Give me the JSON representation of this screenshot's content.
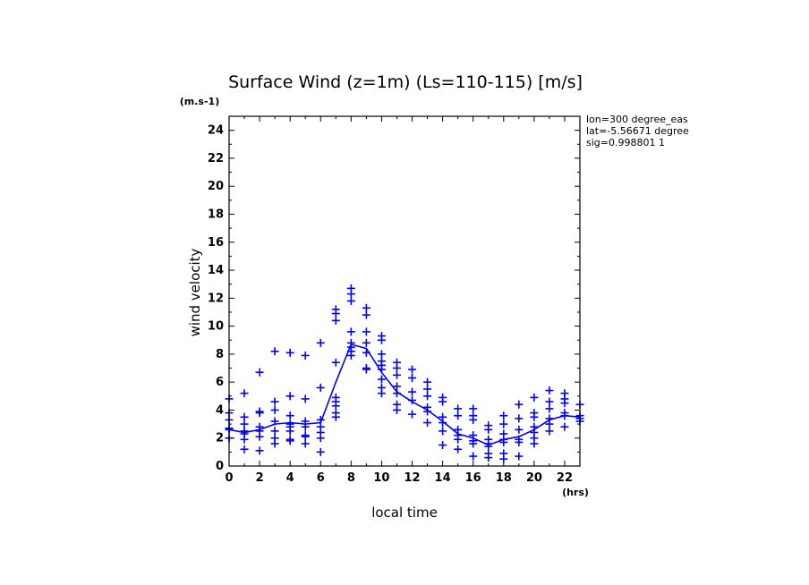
{
  "chart_data": {
    "type": "scatter",
    "title": "Surface Wind (z=1m) (Ls=110-115) [m/s]",
    "y_unit_label": "(m.s-1)",
    "xlabel": "local time",
    "x_unit_label": "(hrs)",
    "ylabel": "wind velocity",
    "xlim": [
      0,
      23
    ],
    "ylim": [
      0,
      25
    ],
    "x_ticks": [
      0,
      2,
      4,
      6,
      8,
      10,
      12,
      14,
      16,
      18,
      20,
      22
    ],
    "y_ticks": [
      0,
      2,
      4,
      6,
      8,
      10,
      12,
      14,
      16,
      18,
      20,
      22,
      24
    ],
    "info_lines": [
      "lon=300 degree_eas",
      "lat=-5.56671 degree",
      "sig=0.998801 1"
    ],
    "color": "#0000ff",
    "grid": false,
    "series": [
      {
        "type": "scatter",
        "marker": "+",
        "points": [
          [
            0,
            4.8
          ],
          [
            0,
            3.8
          ],
          [
            0,
            3.3
          ],
          [
            0,
            2.7
          ],
          [
            0,
            2.6
          ],
          [
            0,
            2.0
          ],
          [
            1,
            5.2
          ],
          [
            1,
            3.5
          ],
          [
            1,
            3.0
          ],
          [
            1,
            2.5
          ],
          [
            1,
            2.3
          ],
          [
            1,
            1.9
          ],
          [
            1,
            1.2
          ],
          [
            2,
            6.7
          ],
          [
            2,
            3.9
          ],
          [
            2,
            3.8
          ],
          [
            2,
            2.8
          ],
          [
            2,
            2.5
          ],
          [
            2,
            2.1
          ],
          [
            2,
            1.1
          ],
          [
            3,
            8.2
          ],
          [
            3,
            4.6
          ],
          [
            3,
            4.0
          ],
          [
            3,
            3.2
          ],
          [
            3,
            2.5
          ],
          [
            3,
            2.0
          ],
          [
            3,
            1.6
          ],
          [
            4,
            8.1
          ],
          [
            4,
            5.0
          ],
          [
            4,
            3.6
          ],
          [
            4,
            3.0
          ],
          [
            4,
            2.8
          ],
          [
            4,
            2.5
          ],
          [
            4,
            1.9
          ],
          [
            4,
            1.8
          ],
          [
            5,
            7.9
          ],
          [
            5,
            4.8
          ],
          [
            5,
            3.2
          ],
          [
            5,
            2.8
          ],
          [
            5,
            2.2
          ],
          [
            5,
            2.1
          ],
          [
            5,
            1.6
          ],
          [
            6,
            8.8
          ],
          [
            6,
            5.6
          ],
          [
            6,
            3.3
          ],
          [
            6,
            2.8
          ],
          [
            6,
            2.4
          ],
          [
            6,
            2.0
          ],
          [
            6,
            1.0
          ],
          [
            7,
            11.2
          ],
          [
            7,
            10.9
          ],
          [
            7,
            10.4
          ],
          [
            7,
            7.4
          ],
          [
            7,
            4.9
          ],
          [
            7,
            4.6
          ],
          [
            7,
            4.3
          ],
          [
            7,
            3.8
          ],
          [
            7,
            3.5
          ],
          [
            8,
            12.7
          ],
          [
            8,
            12.3
          ],
          [
            8,
            11.8
          ],
          [
            8,
            9.6
          ],
          [
            8,
            8.8
          ],
          [
            8,
            8.5
          ],
          [
            8,
            8.2
          ],
          [
            8,
            7.9
          ],
          [
            9,
            11.3
          ],
          [
            9,
            10.8
          ],
          [
            9,
            9.6
          ],
          [
            9,
            8.8
          ],
          [
            9,
            8.1
          ],
          [
            9,
            7.0
          ],
          [
            9,
            6.9
          ],
          [
            10,
            9.3
          ],
          [
            10,
            9.0
          ],
          [
            10,
            8.0
          ],
          [
            10,
            7.5
          ],
          [
            10,
            7.2
          ],
          [
            10,
            6.9
          ],
          [
            10,
            6.2
          ],
          [
            10,
            5.6
          ],
          [
            10,
            5.2
          ],
          [
            11,
            7.4
          ],
          [
            11,
            7.0
          ],
          [
            11,
            6.5
          ],
          [
            11,
            5.7
          ],
          [
            11,
            5.2
          ],
          [
            11,
            4.4
          ],
          [
            11,
            4.0
          ],
          [
            12,
            6.9
          ],
          [
            12,
            6.3
          ],
          [
            12,
            5.3
          ],
          [
            12,
            4.7
          ],
          [
            12,
            3.7
          ],
          [
            13,
            6.0
          ],
          [
            13,
            5.5
          ],
          [
            13,
            5.0
          ],
          [
            13,
            4.2
          ],
          [
            13,
            3.9
          ],
          [
            13,
            3.1
          ],
          [
            14,
            4.9
          ],
          [
            14,
            4.6
          ],
          [
            14,
            3.5
          ],
          [
            14,
            3.1
          ],
          [
            14,
            2.5
          ],
          [
            14,
            1.5
          ],
          [
            15,
            4.1
          ],
          [
            15,
            3.6
          ],
          [
            15,
            2.6
          ],
          [
            15,
            2.2
          ],
          [
            15,
            1.9
          ],
          [
            15,
            1.2
          ],
          [
            16,
            4.1
          ],
          [
            16,
            3.6
          ],
          [
            16,
            3.3
          ],
          [
            16,
            2.2
          ],
          [
            16,
            1.8
          ],
          [
            16,
            1.6
          ],
          [
            16,
            0.7
          ],
          [
            17,
            2.9
          ],
          [
            17,
            2.6
          ],
          [
            17,
            1.9
          ],
          [
            17,
            1.6
          ],
          [
            17,
            1.4
          ],
          [
            17,
            0.9
          ],
          [
            17,
            0.6
          ],
          [
            18,
            3.6
          ],
          [
            18,
            3.0
          ],
          [
            18,
            2.3
          ],
          [
            18,
            1.9
          ],
          [
            18,
            1.7
          ],
          [
            18,
            0.9
          ],
          [
            18,
            0.5
          ],
          [
            19,
            4.4
          ],
          [
            19,
            3.4
          ],
          [
            19,
            2.6
          ],
          [
            19,
            1.9
          ],
          [
            19,
            1.7
          ],
          [
            19,
            0.7
          ],
          [
            20,
            4.9
          ],
          [
            20,
            3.8
          ],
          [
            20,
            3.5
          ],
          [
            20,
            2.8
          ],
          [
            20,
            2.4
          ],
          [
            20,
            2.0
          ],
          [
            20,
            1.6
          ],
          [
            21,
            5.4
          ],
          [
            21,
            4.6
          ],
          [
            21,
            4.1
          ],
          [
            21,
            3.4
          ],
          [
            21,
            3.0
          ],
          [
            21,
            2.5
          ],
          [
            22,
            5.2
          ],
          [
            22,
            4.8
          ],
          [
            22,
            4.5
          ],
          [
            22,
            3.8
          ],
          [
            22,
            3.6
          ],
          [
            22,
            2.8
          ],
          [
            23,
            4.4
          ],
          [
            23,
            3.6
          ],
          [
            23,
            3.4
          ],
          [
            23,
            3.2
          ]
        ]
      },
      {
        "type": "line",
        "points": [
          [
            0,
            2.6
          ],
          [
            1,
            2.4
          ],
          [
            2,
            2.6
          ],
          [
            3,
            3.0
          ],
          [
            4,
            3.1
          ],
          [
            5,
            3.0
          ],
          [
            6,
            3.1
          ],
          [
            7,
            6.0
          ],
          [
            8,
            8.7
          ],
          [
            9,
            8.4
          ],
          [
            10,
            6.7
          ],
          [
            11,
            5.3
          ],
          [
            12,
            4.6
          ],
          [
            13,
            4.0
          ],
          [
            14,
            3.2
          ],
          [
            15,
            2.3
          ],
          [
            16,
            2.0
          ],
          [
            17,
            1.5
          ],
          [
            18,
            1.9
          ],
          [
            19,
            2.1
          ],
          [
            20,
            2.6
          ],
          [
            21,
            3.3
          ],
          [
            22,
            3.6
          ],
          [
            23,
            3.5
          ]
        ]
      }
    ]
  }
}
